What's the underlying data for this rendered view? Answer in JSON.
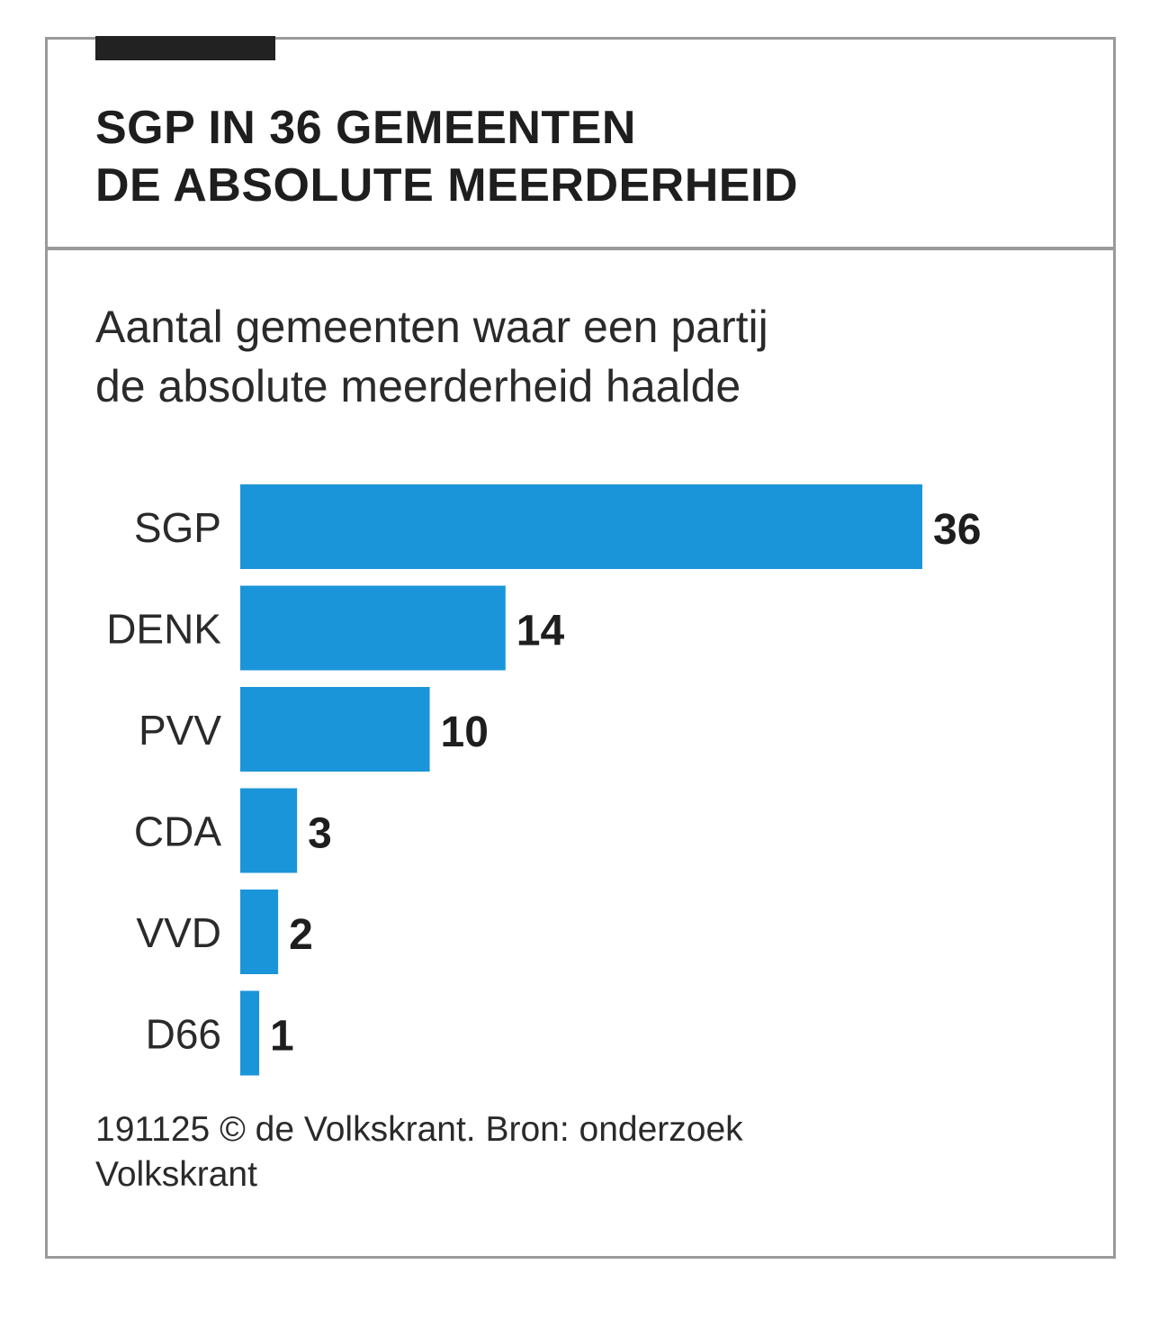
{
  "header": {
    "title_line1": "SGP IN 36 GEMEENTEN",
    "title_line2": "DE ABSOLUTE MEERDERHEID"
  },
  "subtitle": {
    "line1": "Aantal gemeenten waar een partij",
    "line2": "de absolute meerderheid haalde"
  },
  "footer": {
    "line1": "191125 © de Volkskrant. Bron: onderzoek",
    "line2": "Volkskrant"
  },
  "colors": {
    "bar": "#1b95d9",
    "text": "#1e1e1e",
    "frame": "#9a9a9a"
  },
  "chart_data": {
    "type": "bar",
    "orientation": "horizontal",
    "title": "SGP IN 36 GEMEENTEN DE ABSOLUTE MEERDERHEID",
    "subtitle": "Aantal gemeenten waar een partij de absolute meerderheid haalde",
    "categories": [
      "SGP",
      "DENK",
      "PVV",
      "CDA",
      "VVD",
      "D66"
    ],
    "values": [
      36,
      14,
      10,
      3,
      2,
      1
    ],
    "xlabel": "",
    "ylabel": "",
    "xlim": [
      0,
      36
    ],
    "grid": false,
    "data_labels": true
  }
}
